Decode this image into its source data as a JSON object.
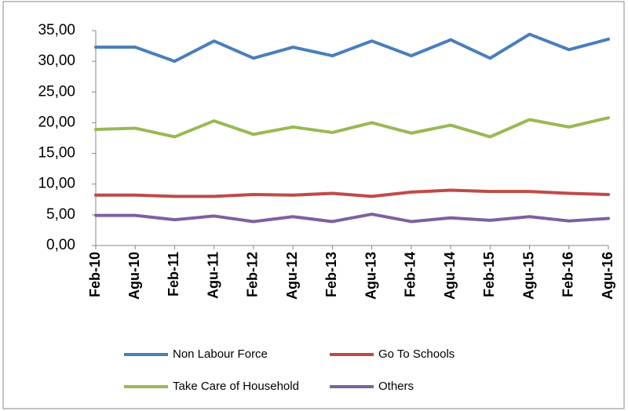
{
  "chart_data": {
    "type": "line",
    "categories": [
      "Feb-10",
      "Agu-10",
      "Feb-11",
      "Agu-11",
      "Feb-12",
      "Agu-12",
      "Feb-13",
      "Agu-13",
      "Feb-14",
      "Agu-14",
      "Feb-15",
      "Agu-15",
      "Feb-16",
      "Agu-16"
    ],
    "series": [
      {
        "name": "Non Labour Force",
        "color": "#4a7ebb",
        "values": [
          32.3,
          32.3,
          30.0,
          33.3,
          30.5,
          32.3,
          30.9,
          33.3,
          30.9,
          33.5,
          30.5,
          34.4,
          31.9,
          33.6
        ]
      },
      {
        "name": "Go To Schools",
        "color": "#be4b48",
        "values": [
          8.2,
          8.2,
          8.0,
          8.0,
          8.3,
          8.2,
          8.5,
          8.0,
          8.7,
          9.0,
          8.8,
          8.8,
          8.5,
          8.3
        ]
      },
      {
        "name": "Take Care of Household",
        "color": "#98b954",
        "values": [
          18.9,
          19.1,
          17.7,
          20.3,
          18.1,
          19.3,
          18.4,
          20.0,
          18.3,
          19.6,
          17.7,
          20.5,
          19.3,
          20.8
        ]
      },
      {
        "name": "Others",
        "color": "#7d60a0",
        "values": [
          4.9,
          4.9,
          4.2,
          4.8,
          3.9,
          4.7,
          3.9,
          5.1,
          3.9,
          4.5,
          4.1,
          4.7,
          4.0,
          4.4
        ]
      }
    ],
    "ylim": [
      0,
      35
    ],
    "yticks": [
      {
        "value": 0,
        "label": "0,00"
      },
      {
        "value": 5,
        "label": "5,00"
      },
      {
        "value": 10,
        "label": "10,00"
      },
      {
        "value": 15,
        "label": "15,00"
      },
      {
        "value": 20,
        "label": "20,00"
      },
      {
        "value": 25,
        "label": "25,00"
      },
      {
        "value": 30,
        "label": "30,00"
      },
      {
        "value": 35,
        "label": "35,00"
      }
    ],
    "grid": false
  }
}
